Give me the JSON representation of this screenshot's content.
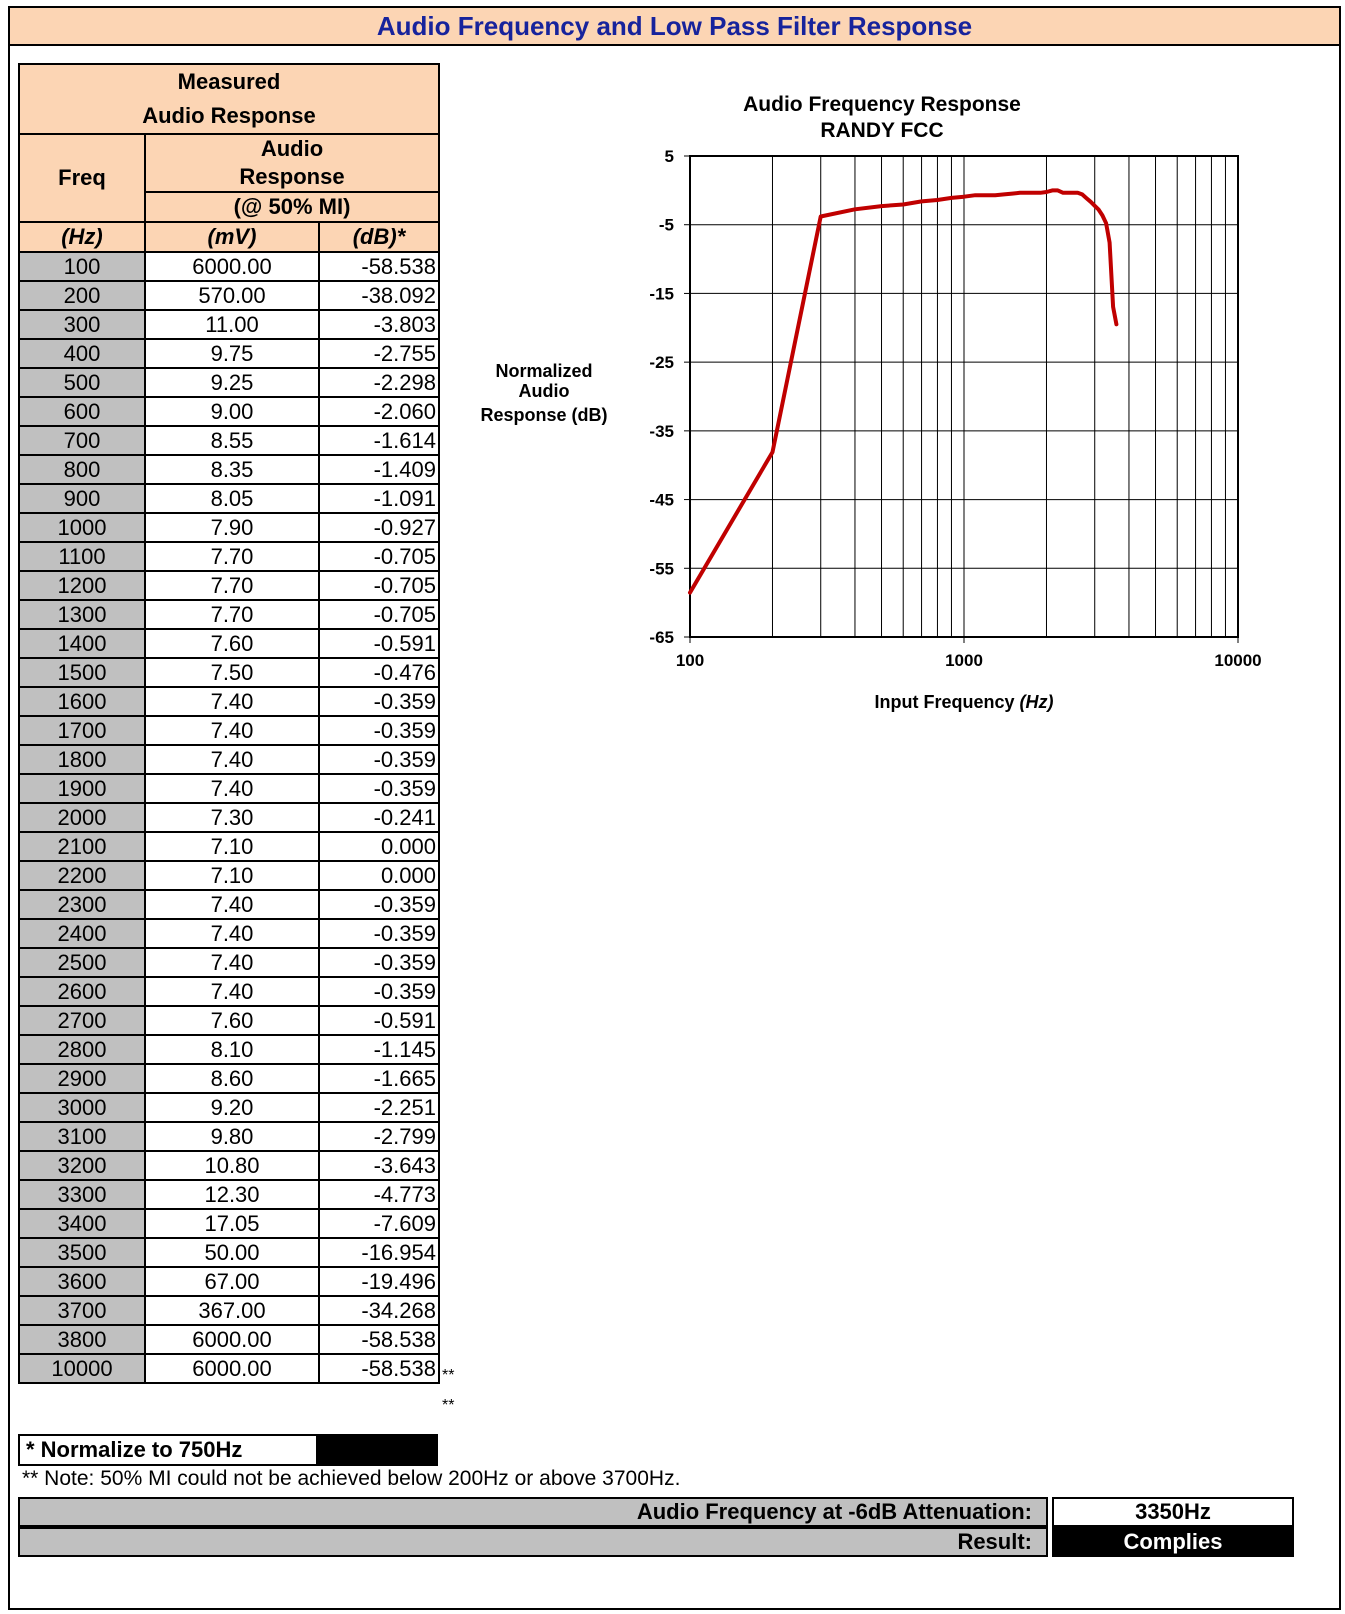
{
  "title": "Audio Frequency and Low Pass Filter Response",
  "table": {
    "header_measured_line1": "Measured",
    "header_measured_line2": "Audio Response",
    "header_freq": "Freq",
    "header_audio_line1": "Audio",
    "header_audio_line2": "Response",
    "header_mi": "(@ 50% MI)",
    "unit_freq": "(Hz)",
    "unit_mv": "(mV)",
    "unit_db": "(dB)*",
    "rows": [
      {
        "freq": "100",
        "mv": "6000.00",
        "db": "-58.538",
        "mark": ""
      },
      {
        "freq": "200",
        "mv": "570.00",
        "db": "-38.092",
        "mark": ""
      },
      {
        "freq": "300",
        "mv": "11.00",
        "db": "-3.803",
        "mark": ""
      },
      {
        "freq": "400",
        "mv": "9.75",
        "db": "-2.755",
        "mark": ""
      },
      {
        "freq": "500",
        "mv": "9.25",
        "db": "-2.298",
        "mark": ""
      },
      {
        "freq": "600",
        "mv": "9.00",
        "db": "-2.060",
        "mark": ""
      },
      {
        "freq": "700",
        "mv": "8.55",
        "db": "-1.614",
        "mark": ""
      },
      {
        "freq": "800",
        "mv": "8.35",
        "db": "-1.409",
        "mark": ""
      },
      {
        "freq": "900",
        "mv": "8.05",
        "db": "-1.091",
        "mark": ""
      },
      {
        "freq": "1000",
        "mv": "7.90",
        "db": "-0.927",
        "mark": ""
      },
      {
        "freq": "1100",
        "mv": "7.70",
        "db": "-0.705",
        "mark": ""
      },
      {
        "freq": "1200",
        "mv": "7.70",
        "db": "-0.705",
        "mark": ""
      },
      {
        "freq": "1300",
        "mv": "7.70",
        "db": "-0.705",
        "mark": ""
      },
      {
        "freq": "1400",
        "mv": "7.60",
        "db": "-0.591",
        "mark": ""
      },
      {
        "freq": "1500",
        "mv": "7.50",
        "db": "-0.476",
        "mark": ""
      },
      {
        "freq": "1600",
        "mv": "7.40",
        "db": "-0.359",
        "mark": ""
      },
      {
        "freq": "1700",
        "mv": "7.40",
        "db": "-0.359",
        "mark": ""
      },
      {
        "freq": "1800",
        "mv": "7.40",
        "db": "-0.359",
        "mark": ""
      },
      {
        "freq": "1900",
        "mv": "7.40",
        "db": "-0.359",
        "mark": ""
      },
      {
        "freq": "2000",
        "mv": "7.30",
        "db": "-0.241",
        "mark": ""
      },
      {
        "freq": "2100",
        "mv": "7.10",
        "db": "0.000",
        "mark": ""
      },
      {
        "freq": "2200",
        "mv": "7.10",
        "db": "0.000",
        "mark": ""
      },
      {
        "freq": "2300",
        "mv": "7.40",
        "db": "-0.359",
        "mark": ""
      },
      {
        "freq": "2400",
        "mv": "7.40",
        "db": "-0.359",
        "mark": ""
      },
      {
        "freq": "2500",
        "mv": "7.40",
        "db": "-0.359",
        "mark": ""
      },
      {
        "freq": "2600",
        "mv": "7.40",
        "db": "-0.359",
        "mark": ""
      },
      {
        "freq": "2700",
        "mv": "7.60",
        "db": "-0.591",
        "mark": ""
      },
      {
        "freq": "2800",
        "mv": "8.10",
        "db": "-1.145",
        "mark": ""
      },
      {
        "freq": "2900",
        "mv": "8.60",
        "db": "-1.665",
        "mark": ""
      },
      {
        "freq": "3000",
        "mv": "9.20",
        "db": "-2.251",
        "mark": ""
      },
      {
        "freq": "3100",
        "mv": "9.80",
        "db": "-2.799",
        "mark": ""
      },
      {
        "freq": "3200",
        "mv": "10.80",
        "db": "-3.643",
        "mark": ""
      },
      {
        "freq": "3300",
        "mv": "12.30",
        "db": "-4.773",
        "mark": ""
      },
      {
        "freq": "3400",
        "mv": "17.05",
        "db": "-7.609",
        "mark": ""
      },
      {
        "freq": "3500",
        "mv": "50.00",
        "db": "-16.954",
        "mark": ""
      },
      {
        "freq": "3600",
        "mv": "67.00",
        "db": "-19.496",
        "mark": ""
      },
      {
        "freq": "3700",
        "mv": "367.00",
        "db": "-34.268",
        "mark": ""
      },
      {
        "freq": "3800",
        "mv": "6000.00",
        "db": "-58.538",
        "mark": "**"
      },
      {
        "freq": "10000",
        "mv": "6000.00",
        "db": "-58.538",
        "mark": "**"
      }
    ]
  },
  "normalize_note": "* Normalize to 750Hz",
  "footnote": "** Note: 50% MI could not be achieved below 200Hz or above 3700Hz.",
  "result": {
    "attenuation_label": "Audio Frequency at -6dB Attenuation:",
    "attenuation_value": "3350Hz",
    "result_label": "Result:",
    "result_value": "Complies"
  },
  "colors": {
    "header_fill": "#fcd5b4",
    "title_text": "#17239c",
    "freq_fill": "#c0c0c0",
    "series_line": "#c00000"
  },
  "chart_data": {
    "type": "line",
    "title_line1": "Audio Frequency Response",
    "title_line2": "RANDY  FCC",
    "ylabel_line1": "Normalized",
    "ylabel_line2": "Audio",
    "ylabel_line3": "Response (dB)",
    "xlabel": "Input Frequency",
    "xlabel_unit": "(Hz)",
    "x_scale": "log",
    "xlim": [
      100,
      10000
    ],
    "ylim": [
      -65,
      5
    ],
    "yticks": [
      5,
      -5,
      -15,
      -25,
      -35,
      -45,
      -55,
      -65
    ],
    "xticks": [
      100,
      1000,
      10000
    ],
    "grid": true,
    "series": [
      {
        "x": [
          100,
          200,
          300,
          400,
          500,
          600,
          700,
          800,
          900,
          1000,
          1100,
          1200,
          1300,
          1400,
          1500,
          1600,
          1700,
          1800,
          1900,
          2000,
          2100,
          2200,
          2300,
          2400,
          2500,
          2600,
          2700,
          2800,
          2900,
          3000,
          3100,
          3200,
          3300,
          3400,
          3500,
          3600
        ],
        "y": [
          -58.538,
          -38.092,
          -3.803,
          -2.755,
          -2.298,
          -2.06,
          -1.614,
          -1.409,
          -1.091,
          -0.927,
          -0.705,
          -0.705,
          -0.705,
          -0.591,
          -0.476,
          -0.359,
          -0.359,
          -0.359,
          -0.359,
          -0.241,
          0.0,
          0.0,
          -0.359,
          -0.359,
          -0.359,
          -0.359,
          -0.591,
          -1.145,
          -1.665,
          -2.251,
          -2.799,
          -3.643,
          -4.773,
          -7.609,
          -16.954,
          -19.496
        ]
      }
    ]
  }
}
